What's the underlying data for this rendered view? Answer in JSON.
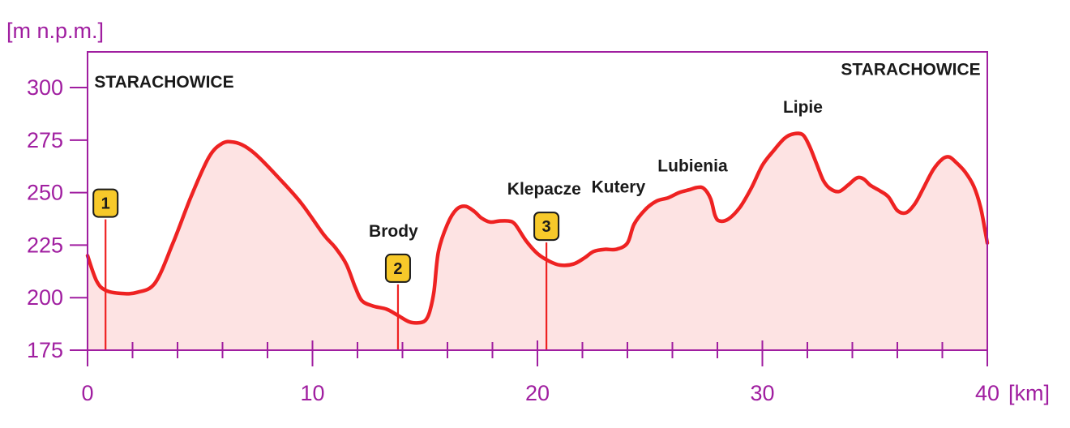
{
  "chart_data": {
    "type": "area",
    "ylabel": "[m n.p.m.]",
    "xlabel": "[km]",
    "xlim": [
      0,
      40
    ],
    "ylim": [
      175,
      317
    ],
    "x_ticks": [
      0,
      10,
      20,
      30,
      40
    ],
    "y_ticks": [
      175,
      200,
      225,
      250,
      275,
      300
    ],
    "x_tick_labels": [
      "0",
      "10",
      "20",
      "30",
      "40"
    ],
    "y_tick_labels": [
      "175",
      "200",
      "225",
      "250",
      "275",
      "300"
    ],
    "grid": false,
    "series": [
      {
        "x": [
          0,
          0.4,
          0.8,
          1.5,
          2.2,
          3.0,
          3.8,
          4.6,
          5.4,
          6.0,
          6.5,
          7.0,
          7.6,
          8.5,
          9.5,
          10.5,
          11.0,
          11.5,
          11.9,
          12.2,
          12.7,
          13.3,
          13.8,
          14.3,
          14.7,
          15.0,
          15.2,
          15.4,
          15.6,
          16.0,
          16.4,
          16.8,
          17.2,
          17.5,
          17.9,
          18.3,
          18.7,
          19.0,
          19.5,
          20.0,
          20.5,
          21.0,
          21.6,
          22.1,
          22.5,
          23.0,
          23.5,
          24.0,
          24.3,
          24.8,
          25.3,
          25.8,
          26.3,
          26.8,
          27.1,
          27.4,
          27.7,
          27.9,
          28.1,
          28.5,
          29.0,
          29.5,
          30.0,
          30.5,
          31.0,
          31.4,
          31.8,
          32.1,
          32.4,
          32.7,
          33.0,
          33.4,
          33.8,
          34.2,
          34.5,
          34.8,
          35.2,
          35.6,
          36.0,
          36.4,
          36.8,
          37.2,
          37.6,
          38.0,
          38.3,
          38.6,
          39.0,
          39.4,
          39.7,
          39.9,
          40.0
        ],
        "y": [
          220,
          208,
          203.5,
          202,
          202.5,
          207,
          226,
          248,
          267,
          273.5,
          274,
          272,
          267,
          257,
          245,
          230,
          224,
          216,
          205,
          198.5,
          196,
          194.5,
          191.5,
          188.5,
          188,
          189,
          193,
          203,
          222,
          235,
          242,
          243.5,
          241,
          238,
          236,
          236.5,
          236.5,
          235,
          227,
          221,
          217.5,
          215.5,
          216,
          219,
          222,
          223,
          223,
          226,
          235,
          242,
          246,
          247.5,
          250,
          251.5,
          252.5,
          252,
          247,
          239,
          236.5,
          237.5,
          243,
          252,
          263,
          270,
          276,
          278,
          277.5,
          272,
          264,
          256,
          252,
          250.5,
          253.5,
          257,
          256.5,
          253.5,
          251,
          248,
          241.5,
          240.5,
          245,
          253,
          261,
          266,
          267,
          264.5,
          260,
          253,
          243,
          232,
          226
        ]
      }
    ],
    "places": [
      {
        "label": "STARACHOWICE",
        "x": 0.3,
        "y": 300,
        "anchor": "start"
      },
      {
        "label": "Brody",
        "x": 13.6,
        "y": 229,
        "anchor": "middle"
      },
      {
        "label": "Klepacze",
        "x": 20.3,
        "y": 249,
        "anchor": "middle"
      },
      {
        "label": "Kutery",
        "x": 23.6,
        "y": 250,
        "anchor": "middle"
      },
      {
        "label": "Lubienia",
        "x": 26.9,
        "y": 260,
        "anchor": "middle"
      },
      {
        "label": "Lipie",
        "x": 31.8,
        "y": 288,
        "anchor": "middle"
      },
      {
        "label": "STARACHOWICE",
        "x": 39.7,
        "y": 306,
        "anchor": "end"
      }
    ],
    "markers": [
      {
        "label": "1",
        "x": 0.8,
        "y": 245
      },
      {
        "label": "2",
        "x": 13.8,
        "y": 214
      },
      {
        "label": "3",
        "x": 20.4,
        "y": 234
      }
    ],
    "colors": {
      "axis": "#a01ea0",
      "line": "#ee2222",
      "fill": "#fde3e3",
      "marker_fill": "#f7c92a",
      "marker_stroke": "#1a1a1a",
      "place_text": "#1a1a1a"
    }
  }
}
